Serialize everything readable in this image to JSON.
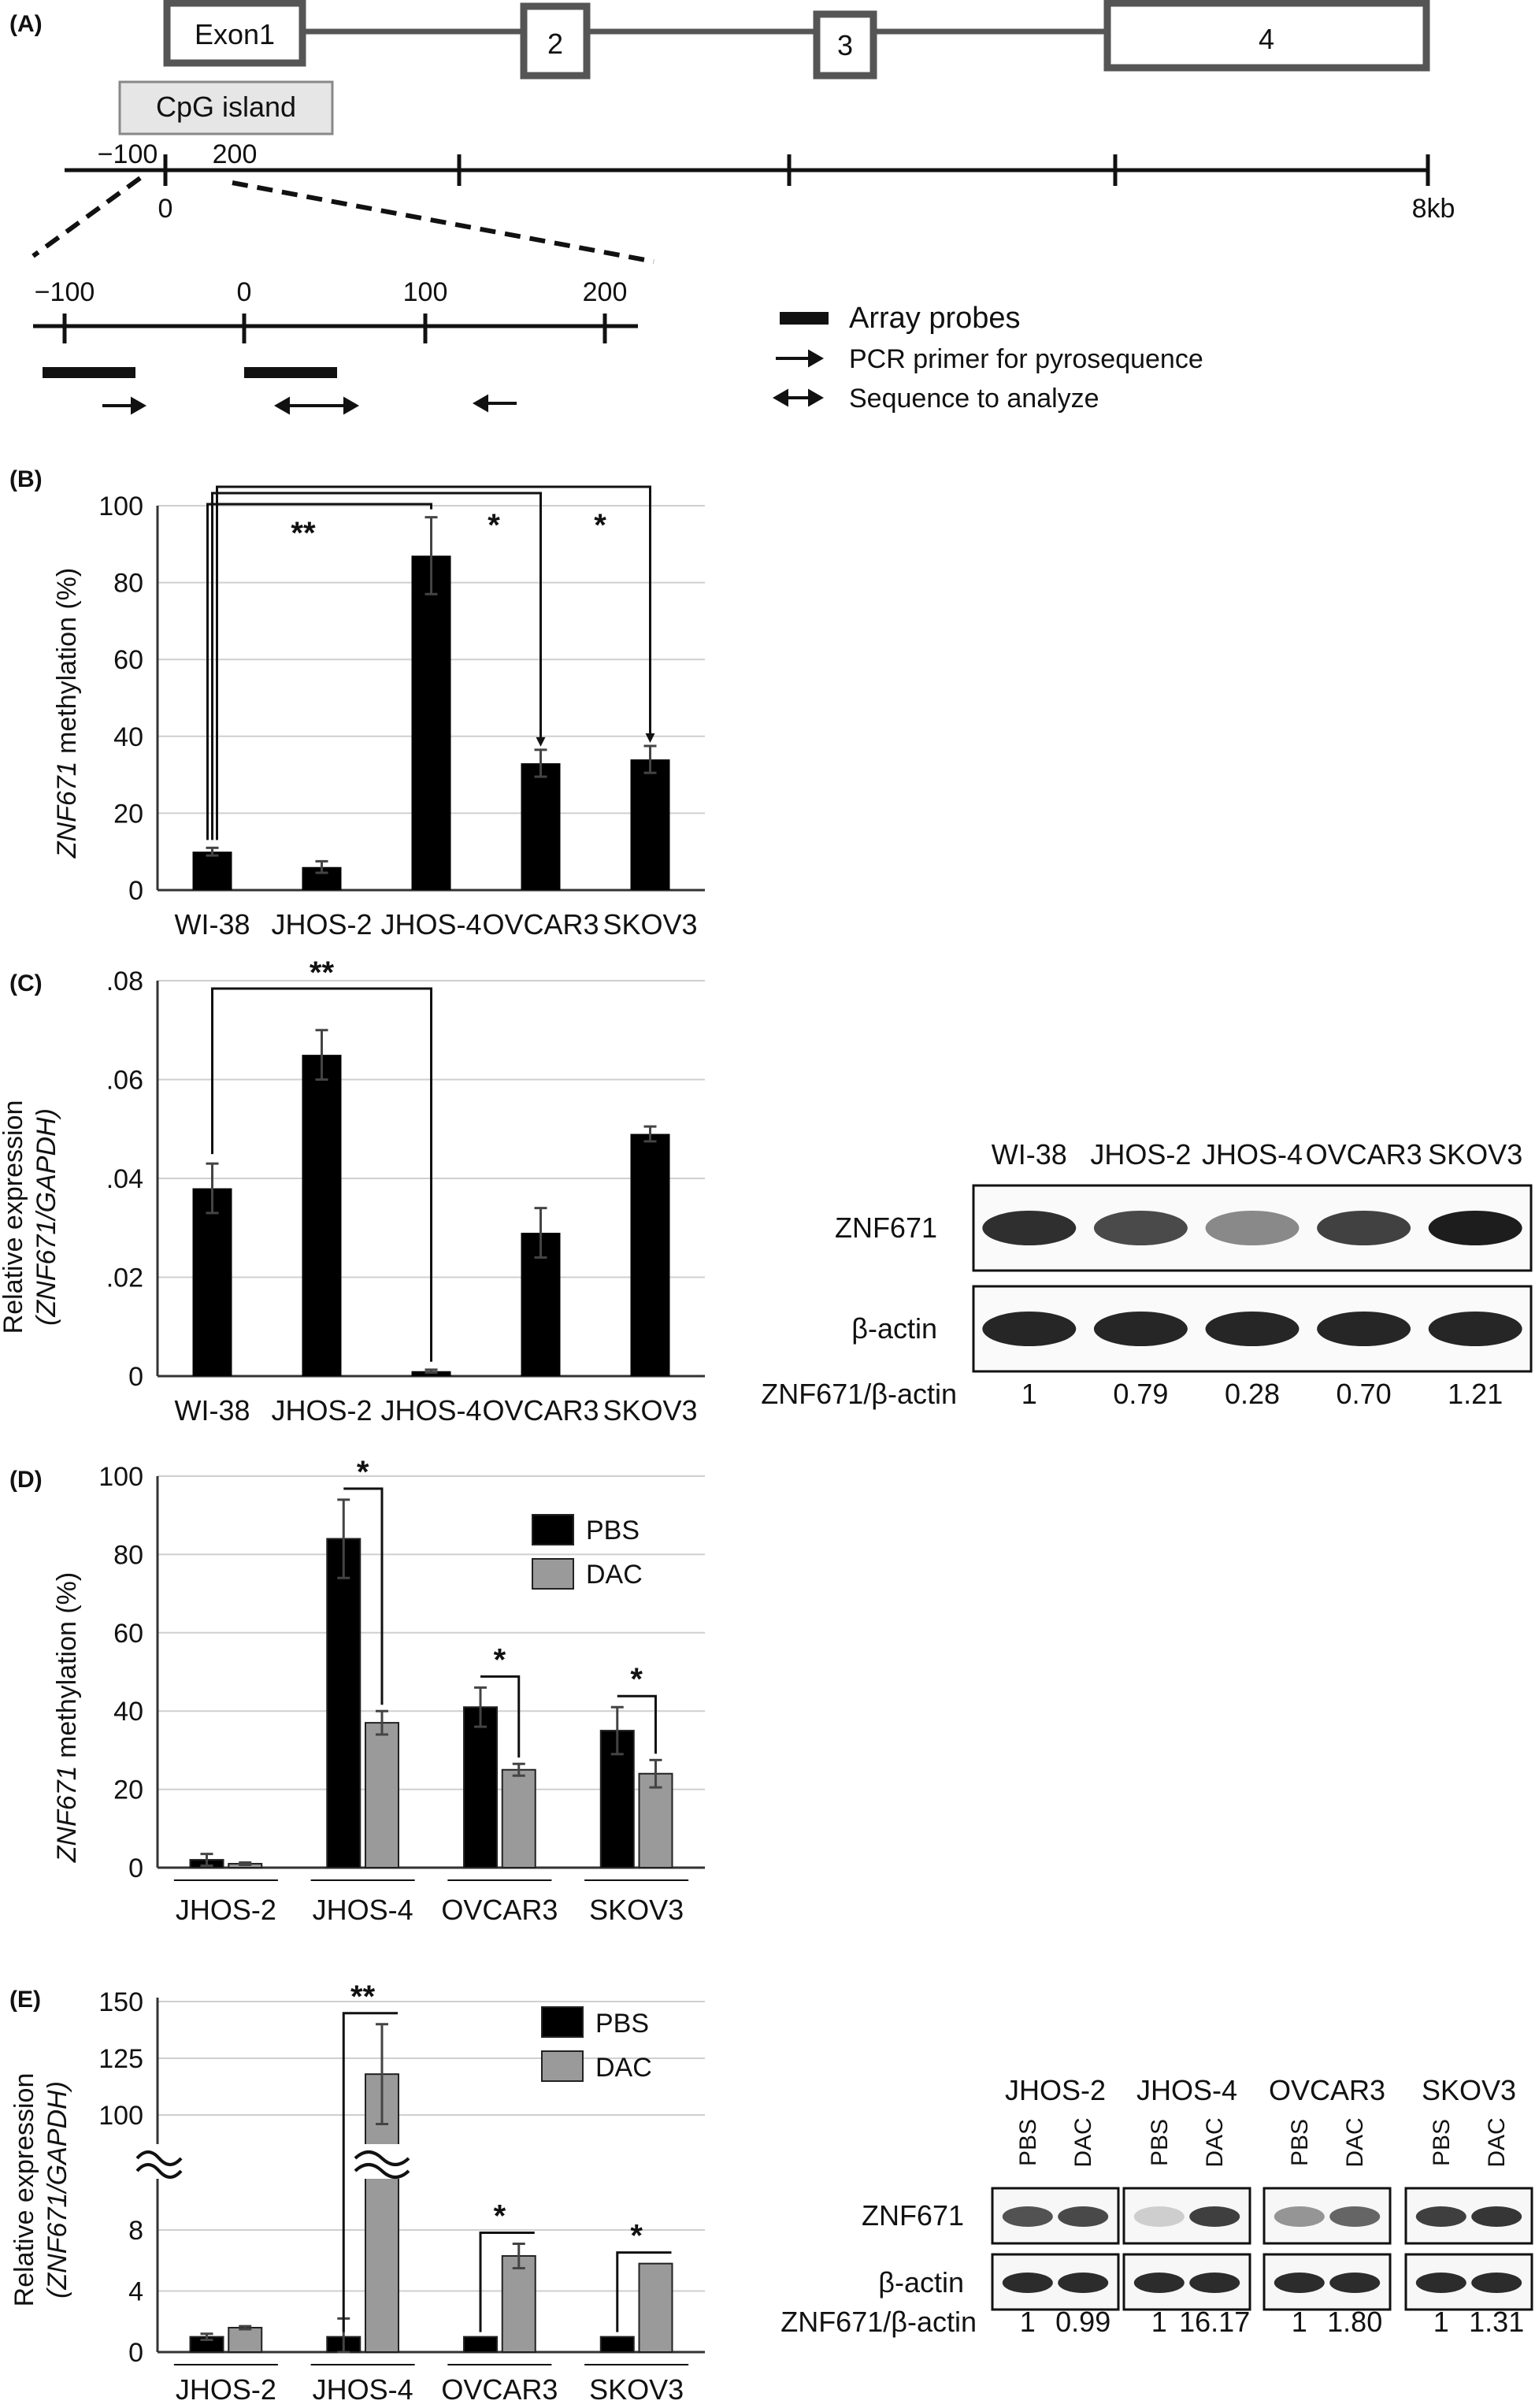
{
  "figure": {
    "panel_labels": [
      "(A)",
      "(B)",
      "(C)",
      "(D)",
      "(E)"
    ]
  },
  "gene_diagram": {
    "exons": [
      "Exon1",
      "2",
      "3",
      "4"
    ],
    "cpg_label": "CpG island",
    "scale_ticks": [
      "−100",
      "200",
      "0",
      "8kb"
    ],
    "zoom_ticks": [
      "−100",
      "0",
      "100",
      "200"
    ],
    "legend": [
      {
        "symbol": "bar",
        "label": "Array probes"
      },
      {
        "symbol": "arrow-right",
        "label": "PCR primer for pyrosequence"
      },
      {
        "symbol": "arrow-both",
        "label": "Sequence to analyze"
      }
    ]
  },
  "chart_data": [
    {
      "panel": "(B)",
      "type": "bar",
      "categories": [
        "WI-38",
        "JHOS-2",
        "JHOS-4",
        "OVCAR3",
        "SKOV3"
      ],
      "values": [
        10,
        6,
        87,
        33,
        34
      ],
      "errors": [
        1,
        1.5,
        10,
        3.5,
        3.5
      ],
      "ylabel_italic": "ZNF671",
      "ylabel_rest": " methylation (%)",
      "yticks": [
        "0",
        "20",
        "40",
        "60",
        "80",
        "100"
      ],
      "ylim": [
        0,
        100
      ],
      "significance": [
        "**",
        "*",
        "*"
      ],
      "grid": true
    },
    {
      "panel": "(C)",
      "type": "bar",
      "categories": [
        "WI-38",
        "JHOS-2",
        "JHOS-4",
        "OVCAR3",
        "SKOV3"
      ],
      "values": [
        0.038,
        0.065,
        0.001,
        0.029,
        0.049
      ],
      "errors": [
        0.005,
        0.005,
        0.0003,
        0.005,
        0.0015
      ],
      "ylabel_line1": "Relative expression",
      "ylabel_line2": "(ZNF671/GAPDH)",
      "yticks": [
        "0",
        ".02",
        ".04",
        ".06",
        ".08"
      ],
      "ylim": [
        0,
        0.08
      ],
      "significance": [
        "**"
      ],
      "grid": true
    },
    {
      "panel": "(D)",
      "type": "bar",
      "categories": [
        "JHOS-2",
        "JHOS-4",
        "OVCAR3",
        "SKOV3"
      ],
      "series": [
        {
          "name": "PBS",
          "values": [
            2,
            84,
            41,
            35
          ],
          "errors": [
            1.5,
            10,
            5,
            6
          ]
        },
        {
          "name": "DAC",
          "values": [
            1,
            37,
            25,
            24
          ],
          "errors": [
            0.3,
            3,
            1.5,
            3.5
          ]
        }
      ],
      "colors": [
        "#000000",
        "#9a9a9a"
      ],
      "ylabel_italic": "ZNF671",
      "ylabel_rest": " methylation (%)",
      "yticks": [
        "0",
        "20",
        "40",
        "60",
        "80",
        "100"
      ],
      "ylim": [
        0,
        100
      ],
      "significance": [
        "*",
        "*",
        "*"
      ],
      "grid": true
    },
    {
      "panel": "(E)",
      "type": "bar",
      "categories": [
        "JHOS-2",
        "JHOS-4",
        "OVCAR3",
        "SKOV3"
      ],
      "series": [
        {
          "name": "PBS",
          "values": [
            1,
            1,
            1,
            1
          ],
          "errors": [
            0.2,
            1.2,
            0,
            0
          ]
        },
        {
          "name": "DAC",
          "values": [
            1.6,
            118,
            6.3,
            5.8
          ],
          "errors": [
            0.1,
            22,
            0.8,
            0
          ]
        }
      ],
      "colors": [
        "#000000",
        "#9a9a9a"
      ],
      "ylabel_line1": "Relative expression",
      "ylabel_line2": "(ZNF671/GAPDH)",
      "yticks_low": [
        "0",
        "4",
        "8"
      ],
      "yticks_high": [
        "100",
        "125",
        "150"
      ],
      "axis_break": true,
      "significance": [
        "**",
        "*",
        "*"
      ],
      "grid": true
    }
  ],
  "blot_c": {
    "lanes": [
      "WI-38",
      "JHOS-2",
      "JHOS-4",
      "OVCAR3",
      "SKOV3"
    ],
    "rows": [
      "ZNF671",
      "β-actin"
    ],
    "ratio_label": "ZNF671/β-actin",
    "ratios": [
      "1",
      "0.79",
      "0.28",
      "0.70",
      "1.21"
    ],
    "band_intensity": [
      0.85,
      0.7,
      0.35,
      0.75,
      0.95
    ]
  },
  "blot_e": {
    "groups": [
      "JHOS-2",
      "JHOS-4",
      "OVCAR3",
      "SKOV3"
    ],
    "lane_labels": [
      "PBS",
      "DAC"
    ],
    "rows": [
      "ZNF671",
      "β-actin"
    ],
    "ratio_label": "ZNF671/β-actin",
    "ratios": [
      "1",
      "0.99",
      "1",
      "16.17",
      "1",
      "1.80",
      "1",
      "1.31"
    ],
    "band_intensity": [
      0.7,
      0.75,
      0.05,
      0.8,
      0.35,
      0.6,
      0.8,
      0.85
    ]
  }
}
